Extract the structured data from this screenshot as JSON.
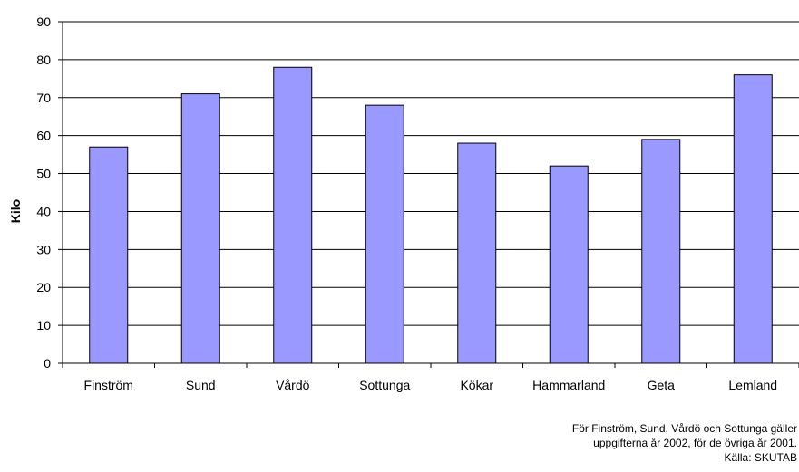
{
  "chart_data": {
    "type": "bar",
    "categories": [
      "Finström",
      "Sund",
      "Vårdö",
      "Sottunga",
      "Kökar",
      "Hammarland",
      "Geta",
      "Lemland"
    ],
    "values": [
      57,
      71,
      78,
      68,
      58,
      52,
      59,
      76
    ],
    "ylabel": "Kilo",
    "ylim": [
      0,
      90
    ],
    "yticks": [
      0,
      10,
      20,
      30,
      40,
      50,
      60,
      70,
      80,
      90
    ],
    "grid": true,
    "bar_color": "#9999ff",
    "legend": "none"
  },
  "notes": [
    "För Finström, Sund, Vårdö och Sottunga gäller",
    "uppgifterna år 2002, för de övriga år 2001.",
    "Källa: SKUTAB"
  ]
}
